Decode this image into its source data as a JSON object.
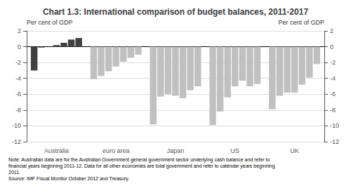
{
  "chart_data": {
    "type": "bar",
    "title": "Chart 1.3: International comparison of budget balances, 2011-2017",
    "ylabel": "Per cent of GDP",
    "y2label": "Per cent of GDP",
    "categories": [
      "Australia",
      "euro area",
      "Japan",
      "US",
      "UK"
    ],
    "series": [
      {
        "values": [
          -3.0,
          -4.1,
          -9.8,
          -9.9,
          -7.9
        ],
        "colors": [
          "#404040",
          "#c0c0c0",
          "#c0c0c0",
          "#c0c0c0",
          "#c0c0c0"
        ]
      },
      {
        "values": [
          -0.1,
          -3.7,
          -6.3,
          -8.2,
          -6.2
        ],
        "colors": [
          "#404040",
          "#c0c0c0",
          "#c0c0c0",
          "#c0c0c0",
          "#c0c0c0"
        ]
      },
      {
        "values": [
          0.0,
          -3.1,
          -6.0,
          -6.4,
          -5.8
        ],
        "colors": [
          "#404040",
          "#c0c0c0",
          "#c0c0c0",
          "#c0c0c0",
          "#c0c0c0"
        ]
      },
      {
        "values": [
          0.2,
          -2.5,
          -6.2,
          -5.0,
          -5.8
        ],
        "colors": [
          "#404040",
          "#c0c0c0",
          "#c0c0c0",
          "#c0c0c0",
          "#c0c0c0"
        ]
      },
      {
        "values": [
          0.5,
          -1.9,
          -6.5,
          -4.3,
          -4.8
        ],
        "colors": [
          "#404040",
          "#c0c0c0",
          "#c0c0c0",
          "#c0c0c0",
          "#c0c0c0"
        ]
      },
      {
        "values": [
          0.9,
          -1.4,
          -5.5,
          -5.0,
          -3.9
        ],
        "colors": [
          "#404040",
          "#c0c0c0",
          "#c0c0c0",
          "#c0c0c0",
          "#c0c0c0"
        ]
      },
      {
        "values": [
          1.1,
          -1.0,
          -5.0,
          -4.7,
          -2.2
        ],
        "colors": [
          "#404040",
          "#c0c0c0",
          "#c0c0c0",
          "#c0c0c0",
          "#c0c0c0"
        ]
      }
    ],
    "ylim": [
      -12,
      2
    ],
    "yticks": [
      -12,
      -10,
      -8,
      -6,
      -4,
      -2,
      0,
      2
    ],
    "y2lim": [
      -12,
      2
    ],
    "y2ticks": [
      -12,
      -10,
      -8,
      -6,
      -4,
      -2,
      0,
      2
    ],
    "grid": true,
    "annotations": [
      "Note: Australian data are for the Australian Government general government sector underlying cash balance and refer to",
      "financial years beginning 2011-12. Data for all other economies are total government and refer to calendar years beginning",
      "2011.",
      "Source: IMF Fiscal Monitor October 2012 and Treasury."
    ]
  }
}
